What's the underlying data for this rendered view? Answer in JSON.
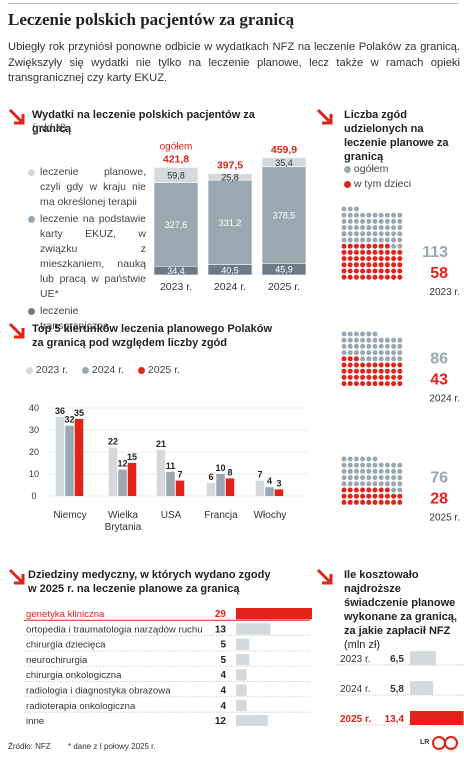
{
  "title": "Leczenie polskich pacjentów za granicą",
  "intro": "Ubiegły rok przyniósł ponowne odbicie w wydatkach NFZ na leczenie Polaków za granicą. Zwiększyły się wydatki nie tylko na leczenie planowe, lecz także w ramach opieki transgranicznej czy karty EKUZ.",
  "colors": {
    "red": "#e2231a",
    "light": "#d3d9dc",
    "mid": "#9aa8b1",
    "dark": "#6b7c88"
  },
  "footer": {
    "source": "Źródło: NFZ",
    "note": "* dane z I połowy 2025 r.",
    "logo": "LR"
  },
  "chart_data": [
    {
      "type": "bar",
      "title": "Wydatki na leczenie polskich pacjentów za granicą",
      "unit": "(mld zł)",
      "categories": [
        "2023 r.",
        "2024 r.",
        "2025 r."
      ],
      "series": [
        {
          "name": "leczenie transgraniczne",
          "values": [
            34.4,
            40.5,
            45.9
          ]
        },
        {
          "name": "leczenie na podstawie karty EKUZ, w związku z mieszkaniem, nauką lub pracą w państwie UE*",
          "values": [
            327.6,
            331.2,
            378.5
          ]
        },
        {
          "name": "leczenie planowe, czyli gdy w kraju nie ma określonej terapii",
          "values": [
            59.8,
            25.8,
            35.4
          ]
        }
      ],
      "totals_label": "ogółem",
      "totals": [
        421.8,
        397.5,
        459.9
      ],
      "labels": {
        "total": [
          "421,8",
          "397,5",
          "459,9"
        ],
        "s0": [
          "34,4",
          "40,5",
          "45,9"
        ],
        "s1": [
          "327,6",
          "331,2",
          "378,5"
        ],
        "s2": [
          "59,8",
          "25,8",
          "35,4"
        ]
      }
    },
    {
      "type": "bar",
      "title": "Top 5 kierunków leczenia planowego Polaków za granicą pod względem liczby zgód",
      "categories": [
        "Niemcy",
        "Wielka Brytania",
        "USA",
        "Francja",
        "Włochy"
      ],
      "category_lines": [
        [
          "Niemcy"
        ],
        [
          "Wielka",
          "Brytania"
        ],
        [
          "USA"
        ],
        [
          "Francja"
        ],
        [
          "Włochy"
        ]
      ],
      "series": [
        {
          "name": "2023 r.",
          "values": [
            36,
            22,
            21,
            6,
            7
          ]
        },
        {
          "name": "2024 r.",
          "values": [
            32,
            12,
            11,
            10,
            4
          ]
        },
        {
          "name": "2025 r.",
          "values": [
            35,
            15,
            7,
            8,
            3
          ]
        }
      ],
      "yticks": [
        "0",
        "10",
        "20",
        "30",
        "40"
      ],
      "ylim": [
        0,
        40
      ]
    },
    {
      "type": "waffle",
      "title": "Liczba zgód udzielonych na leczenie planowe za granicą",
      "legend": [
        "ogółem",
        "w tym dzieci"
      ],
      "years": [
        "2023 r.",
        "2024 r.",
        "2025 r."
      ],
      "total": [
        113,
        86,
        76
      ],
      "children": [
        58,
        43,
        28
      ]
    },
    {
      "type": "bar",
      "title": "Dziedziny medyczny, w których wydano zgody w 2025 r. na leczenie planowe za granicą",
      "categories": [
        "genetyka kliniczna",
        "ortopedia i traumatologia narządów ruchu",
        "chirurgia dziecięca",
        "neurochirurgia",
        "chirurgia onkologiczna",
        "radiologia i diagnostyka obrazowa",
        "radioterapia onkologiczna",
        "inne"
      ],
      "values": [
        29,
        13,
        5,
        5,
        4,
        4,
        4,
        12
      ]
    },
    {
      "type": "bar",
      "title": "Ile kosztowało najdroższe świadczenie planowe wykonane za granicą, za jakie zapłacił NFZ",
      "unit": "(mln zł)",
      "categories": [
        "2023 r.",
        "2024 r.",
        "2025 r."
      ],
      "values": [
        6.5,
        5.8,
        13.4
      ],
      "labels": [
        "6,5",
        "5,8",
        "13,4"
      ]
    }
  ],
  "texts": {
    "exp_title": "Wydatki na leczenie polskich pacjentów za granicą",
    "exp_unit": "(mld zł)",
    "exp_leg1": "leczenie planowe, czyli gdy w kraju nie ma określonej terapii",
    "exp_leg2": "leczenie na podstawie karty EKUZ, w związku z mieszkaniem, nauką lub pracą w państwie UE*",
    "exp_leg3": "leczenie transgraniczne",
    "top5_title": "Top 5 kierunków leczenia planowego Polaków za granicą pod względem liczby zgód",
    "waffle_title": "Liczba zgód udzielonych na leczenie planowe za granicą",
    "spec_title": "Dziedziny medyczny, w których wydano zgody w 2025 r. na leczenie planowe za granicą",
    "cost_title": "Ile kosztowało najdroższe świadczenie planowe wykonane za granicą, za jakie zapłacił NFZ",
    "cost_unit": "(mln zł)"
  }
}
